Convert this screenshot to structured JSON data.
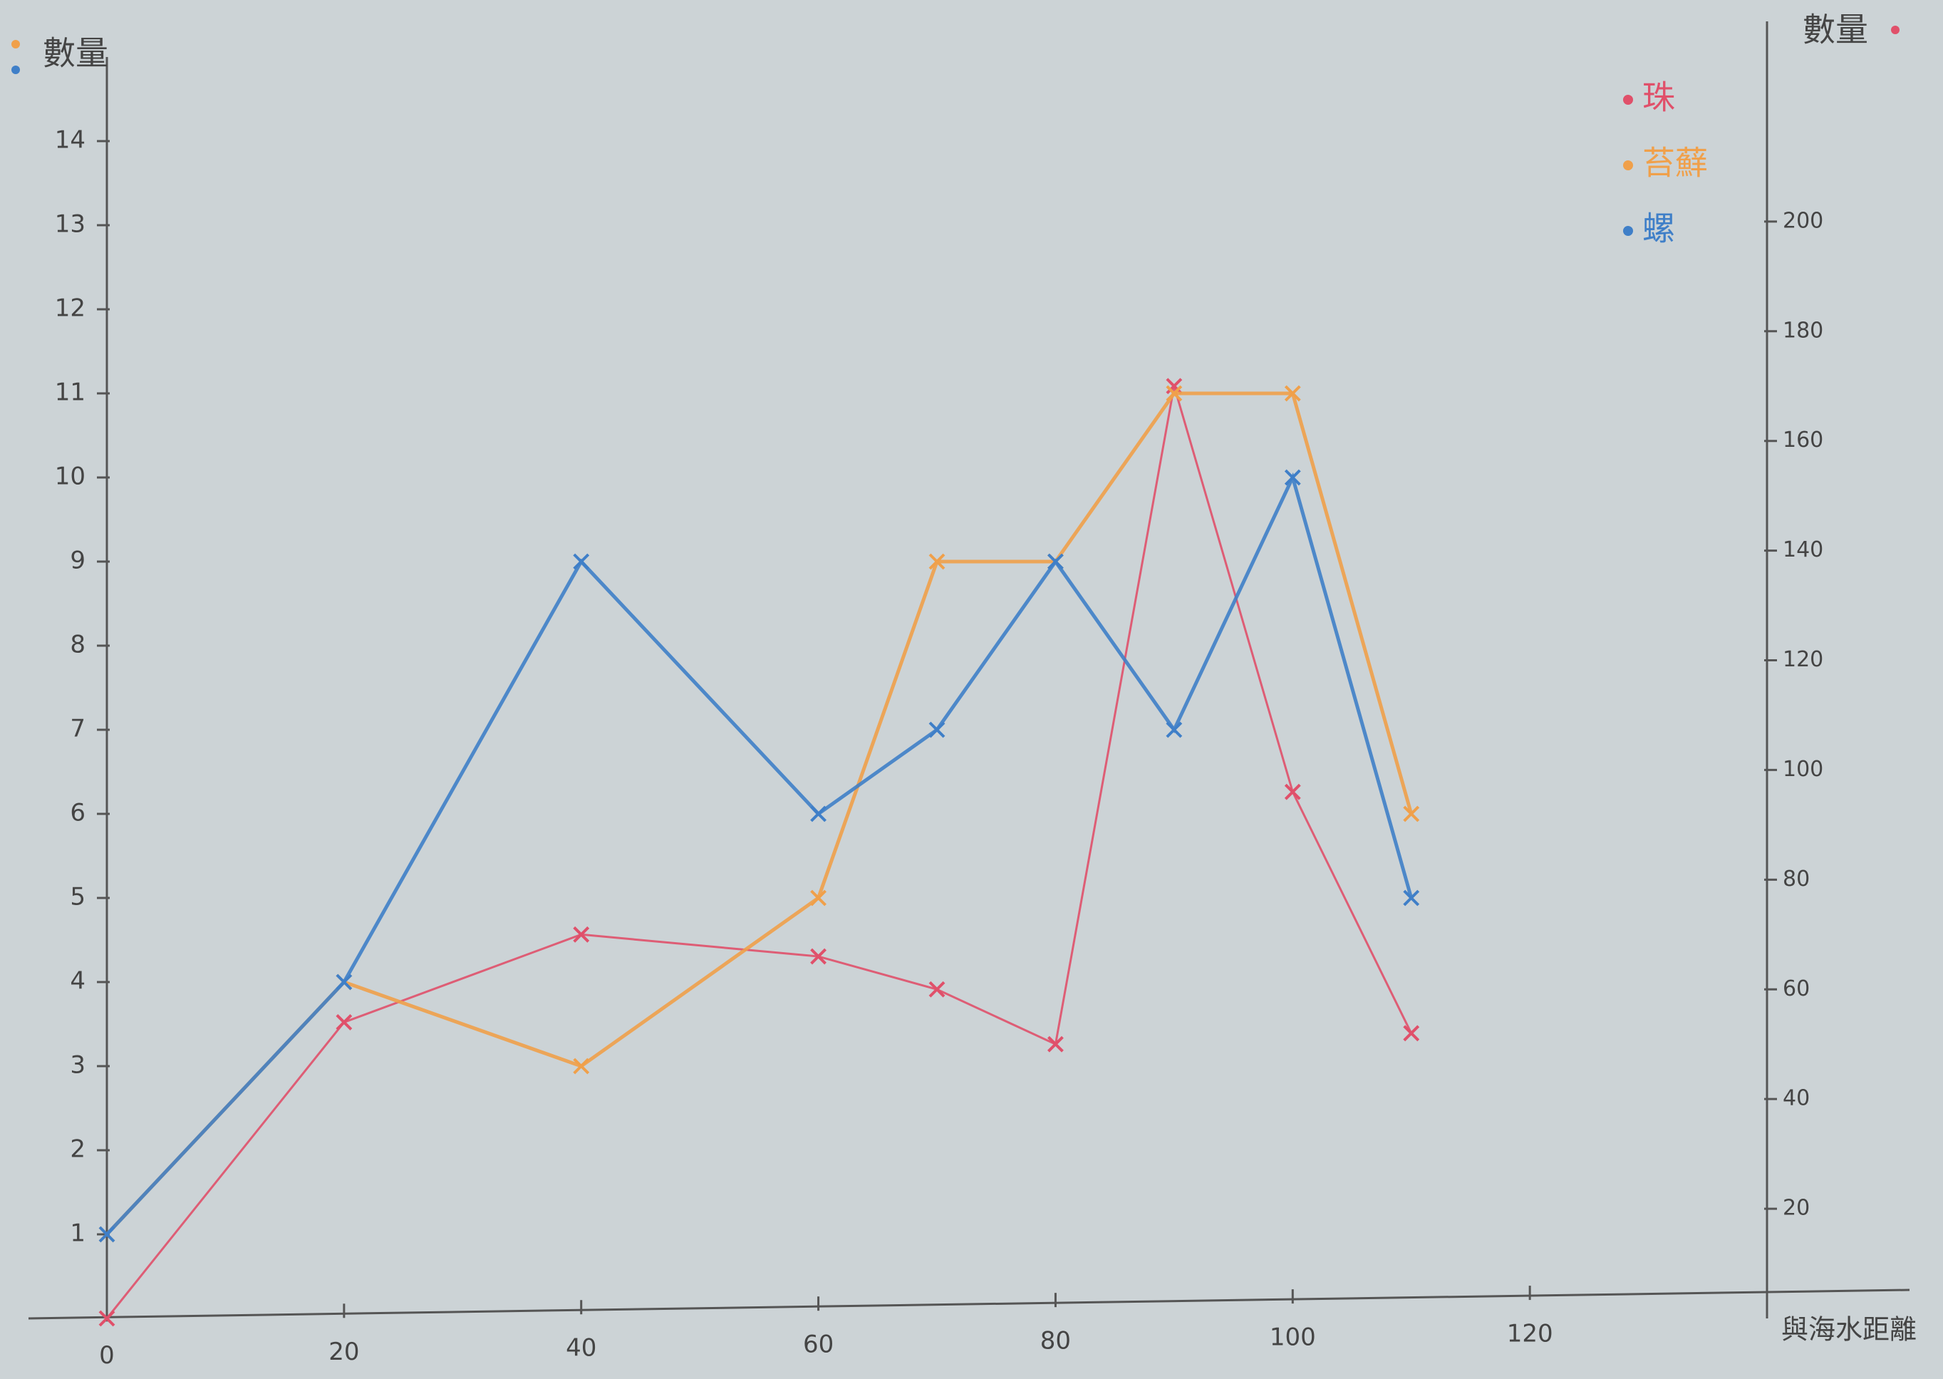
{
  "chart_data": {
    "type": "line",
    "y_label": "數量",
    "y2_label": "數量",
    "x_label": "與海水距離",
    "x": [
      0,
      20,
      40,
      60,
      70,
      80,
      90,
      100,
      110
    ],
    "series": [
      {
        "name": "珠",
        "color": "#e0506a",
        "axis": "y2",
        "values": [
          0,
          54,
          70,
          66,
          60,
          50,
          170,
          96,
          52
        ]
      },
      {
        "name": "苔蘚",
        "color": "#f0a04a",
        "values": [
          1,
          4,
          3,
          5,
          9,
          9,
          11,
          11,
          6
        ]
      },
      {
        "name": "螺",
        "color": "#3f7fc8",
        "values": [
          1,
          4,
          9,
          6,
          7,
          9,
          7,
          10,
          5
        ]
      }
    ],
    "xlim": [
      0,
      140
    ],
    "xticks": [
      0,
      20,
      40,
      60,
      80,
      100,
      120
    ],
    "ylim": [
      0,
      15
    ],
    "yticks": [
      1,
      2,
      3,
      4,
      5,
      6,
      7,
      8,
      9,
      10,
      11,
      12,
      13,
      14
    ],
    "y2lim": [
      0,
      230
    ],
    "y2ticks": [
      20,
      40,
      60,
      80,
      100,
      120,
      140,
      160,
      180,
      200
    ],
    "legend": "upper-right",
    "marker": "x"
  }
}
